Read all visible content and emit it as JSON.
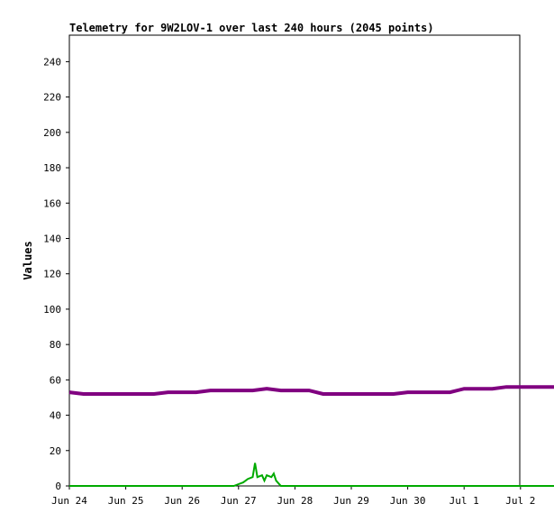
{
  "chart_data": {
    "type": "line",
    "title": "Telemetry for 9W2LOV-1 over last 240 hours (2045 points)",
    "ylabel": "Values",
    "xlabel": "",
    "ylim": [
      0,
      255
    ],
    "yticks": [
      0,
      20,
      40,
      60,
      80,
      100,
      120,
      140,
      160,
      180,
      200,
      220,
      240
    ],
    "xlim": [
      0,
      240
    ],
    "xtick_labels": [
      "Jun 24",
      "Jun 25",
      "Jun 26",
      "Jun 27",
      "Jun 28",
      "Jun 29",
      "Jun 30",
      "Jul 1",
      "Jul 2"
    ],
    "xtick_hours": [
      0,
      24,
      48,
      72,
      96,
      120,
      144,
      168,
      192
    ],
    "grid": false,
    "series": [
      {
        "color": "#800080",
        "x": [
          0,
          6,
          12,
          18,
          24,
          30,
          36,
          42,
          48,
          54,
          60,
          66,
          72,
          78,
          84,
          90,
          96,
          102,
          108,
          114,
          120,
          126,
          132,
          138,
          144,
          150,
          156,
          162,
          168,
          174,
          180,
          186,
          192,
          198,
          204,
          210,
          216,
          222,
          228,
          234,
          240
        ],
        "values": [
          53,
          52,
          52,
          52,
          52,
          52,
          52,
          53,
          53,
          53,
          54,
          54,
          54,
          54,
          55,
          54,
          54,
          54,
          52,
          52,
          52,
          52,
          52,
          52,
          53,
          53,
          53,
          53,
          55,
          55,
          55,
          56,
          56,
          56,
          56,
          56,
          56,
          56,
          55,
          55,
          56
        ]
      },
      {
        "color": "#00aa00",
        "x": [
          0,
          30,
          60,
          70,
          72,
          74,
          76,
          78,
          79,
          80,
          82,
          83,
          84,
          86,
          87,
          88,
          90,
          100,
          120,
          140,
          160,
          180,
          200,
          220,
          240
        ],
        "values": [
          0,
          0,
          0,
          0,
          1,
          2,
          4,
          5,
          13,
          5,
          6,
          3,
          6,
          5,
          7,
          3,
          0,
          0,
          0,
          0,
          0,
          0,
          0,
          0,
          0
        ]
      }
    ]
  }
}
